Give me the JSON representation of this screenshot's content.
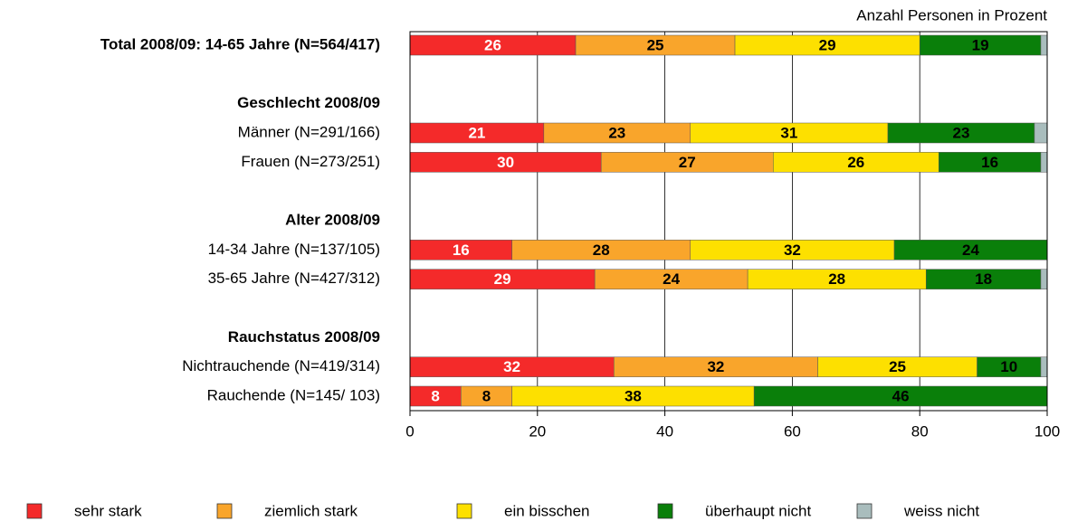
{
  "chart_data": {
    "type": "stacked_bar_horizontal",
    "annotation": "Anzahl Personen in Prozent",
    "categories": [
      "Total 2008/09: 14-65 Jahre (N=564/417)",
      null,
      "Geschlecht 2008/09",
      "Männer (N=291/166)",
      "Frauen (N=273/251)",
      null,
      "Alter 2008/09",
      "14-34 Jahre (N=137/105)",
      "35-65 Jahre (N=427/312)",
      null,
      "Rauchstatus 2008/09",
      "Nichtrauchende (N=419/314)",
      "Rauchende (N=145/  103)"
    ],
    "series": [
      {
        "name": "sehr stark",
        "color": "#f42a2a",
        "values": [
          26,
          null,
          null,
          21,
          30,
          null,
          null,
          16,
          29,
          null,
          null,
          32,
          8
        ]
      },
      {
        "name": "ziemlich stark",
        "color": "#f9a52b",
        "values": [
          25,
          null,
          null,
          23,
          27,
          null,
          null,
          28,
          24,
          null,
          null,
          32,
          8
        ]
      },
      {
        "name": "ein bisschen",
        "color": "#fde000",
        "values": [
          29,
          null,
          null,
          31,
          26,
          null,
          null,
          32,
          28,
          null,
          null,
          25,
          38
        ]
      },
      {
        "name": "überhaupt nicht",
        "color": "#0a7f0a",
        "values": [
          19,
          null,
          null,
          23,
          16,
          null,
          null,
          24,
          18,
          null,
          null,
          10,
          46
        ]
      },
      {
        "name": "weiss nicht",
        "color": "#a9bdbd",
        "values": [
          1,
          null,
          null,
          2,
          1,
          null,
          null,
          0,
          1,
          null,
          null,
          1,
          0
        ]
      }
    ],
    "xlim": [
      0,
      100
    ],
    "xticks": [
      0,
      20,
      40,
      60,
      80,
      100
    ],
    "grid": true,
    "legend": "bottom"
  }
}
